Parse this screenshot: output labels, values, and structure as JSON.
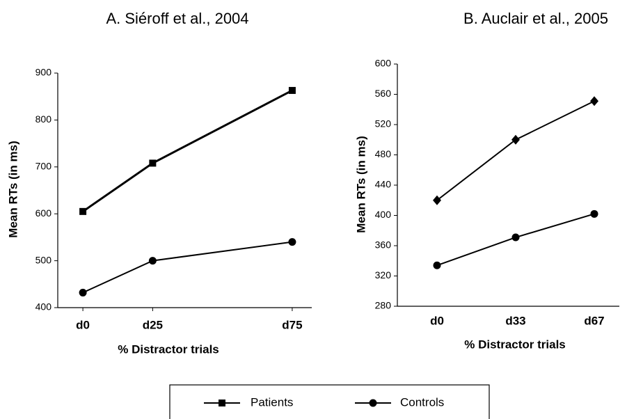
{
  "chart_data": [
    {
      "type": "line",
      "title": "A. Siéroff et al., 2004",
      "x_label": "% Distractor trials",
      "y_label": "Mean RTs (in ms)",
      "x": [
        0,
        25,
        75
      ],
      "xlim": [
        -9,
        82
      ],
      "xticks": [
        {
          "value": 0,
          "label": "d0"
        },
        {
          "value": 25,
          "label": "d25"
        },
        {
          "value": 75,
          "label": "d75"
        }
      ],
      "ylim": [
        400,
        900
      ],
      "yticks": [
        400,
        500,
        600,
        700,
        800,
        900
      ],
      "series": [
        {
          "name": "Patients",
          "color": "#000000",
          "marker": "square",
          "values": [
            605,
            708,
            863
          ]
        },
        {
          "name": "Controls",
          "color": "#000000",
          "marker": "circle",
          "values": [
            432,
            500,
            540
          ]
        }
      ]
    },
    {
      "type": "line",
      "title": "B. Auclair et al., 2005",
      "x_label": "% Distractor trials",
      "y_label": "Mean RTs (in ms)",
      "categories": [
        "d0",
        "d33",
        "d67"
      ],
      "ylim": [
        280,
        600
      ],
      "yticks": [
        280,
        320,
        360,
        400,
        440,
        480,
        520,
        560,
        600
      ],
      "series": [
        {
          "name": "Patients",
          "color": "#000000",
          "marker": "diamond",
          "values": [
            420,
            500,
            551
          ]
        },
        {
          "name": "Controls",
          "color": "#000000",
          "marker": "circle",
          "values": [
            334,
            371,
            402
          ]
        }
      ]
    }
  ]
}
